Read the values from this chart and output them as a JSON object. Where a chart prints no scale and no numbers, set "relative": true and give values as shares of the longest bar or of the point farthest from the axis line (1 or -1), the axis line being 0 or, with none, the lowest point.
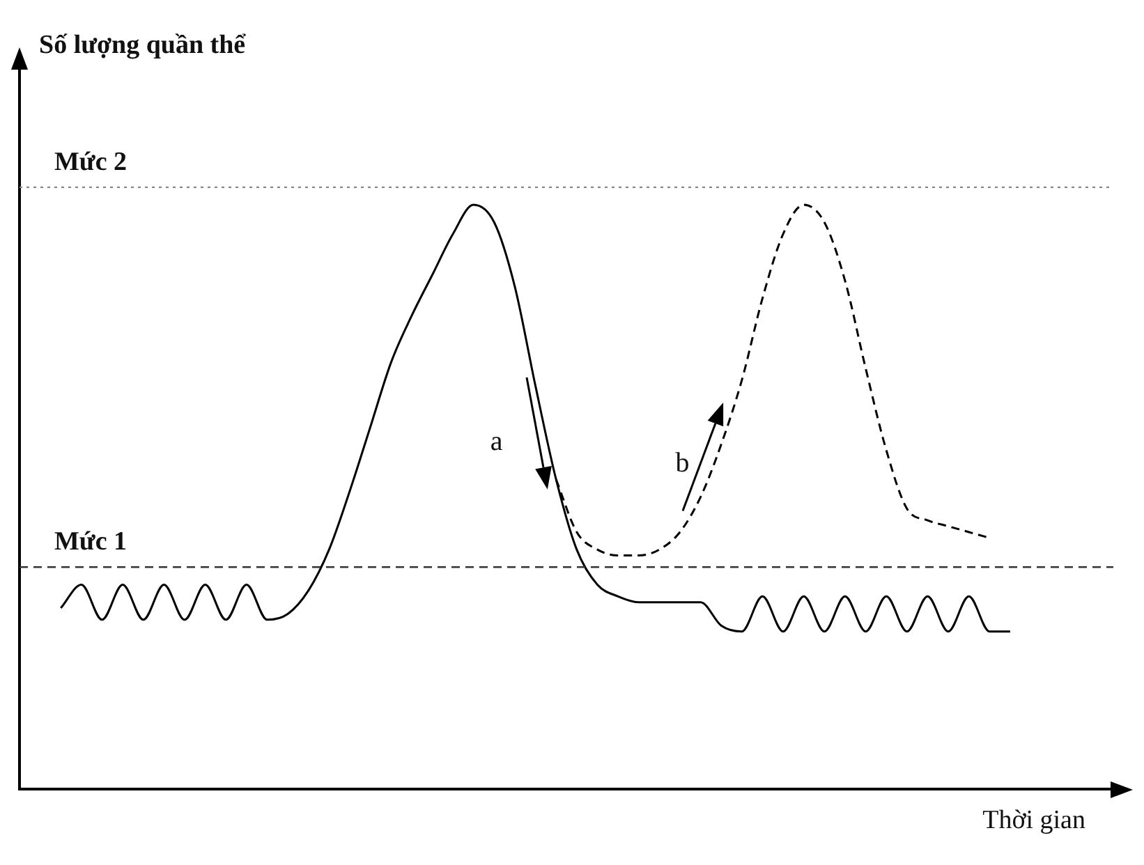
{
  "chart_data": {
    "type": "line",
    "relative": true,
    "xlabel": "Thời gian",
    "categories": [
      null,
      null,
      null,
      null,
      null,
      null,
      null,
      null,
      null,
      null,
      null,
      null,
      null,
      null,
      null,
      null,
      null,
      null,
      null,
      null,
      null,
      null,
      null,
      null,
      null,
      null,
      null,
      null,
      null,
      null,
      null,
      null,
      null,
      null,
      null,
      null,
      null,
      null,
      null,
      null,
      null,
      null,
      null,
      null,
      null,
      null,
      null,
      null,
      null,
      null,
      null,
      null,
      null,
      null
    ],
    "series": [
      {
        "color": "#000000",
        "line_style": "solid",
        "values": [
          null,
          null,
          0.31,
          0.35,
          0.29,
          0.35,
          0.29,
          0.35,
          0.29,
          0.35,
          0.29,
          0.35,
          0.29,
          0.3,
          0.34,
          0.41,
          0.51,
          0.62,
          0.73,
          0.81,
          0.88,
          0.95,
          1.0,
          0.97,
          0.86,
          0.69,
          0.53,
          0.41,
          0.35,
          0.33,
          0.32,
          0.32,
          0.32,
          0.32,
          0.28,
          0.27,
          0.33,
          0.27,
          0.33,
          0.27,
          0.33,
          0.27,
          0.33,
          0.27,
          0.33,
          0.27,
          0.33,
          0.27,
          0.27,
          null,
          null,
          null,
          null,
          null
        ]
      },
      {
        "color": "#000000",
        "line_style": "dashed",
        "values": [
          null,
          null,
          null,
          null,
          null,
          null,
          null,
          null,
          null,
          null,
          null,
          null,
          null,
          null,
          null,
          null,
          null,
          null,
          null,
          null,
          null,
          null,
          null,
          null,
          null,
          null,
          0.53,
          0.44,
          0.41,
          0.4,
          0.4,
          0.41,
          0.44,
          0.5,
          0.59,
          0.7,
          0.84,
          0.95,
          1.0,
          0.97,
          0.87,
          0.72,
          0.58,
          0.48,
          0.46,
          0.45,
          0.44,
          0.43,
          null,
          null,
          null,
          null,
          null,
          null
        ]
      }
    ],
    "ref_lines": [
      {
        "axis": "y",
        "value": 1.03,
        "label": "Mức 2",
        "color": "#888888",
        "line_style": "dotted"
      },
      {
        "axis": "y",
        "value": 0.38,
        "label": "Mức 1",
        "color": "#333333",
        "line_style": "dashed"
      }
    ],
    "annotations": [
      "Số lượng quần thể",
      "a",
      "b"
    ],
    "legend": false,
    "grid": false
  }
}
